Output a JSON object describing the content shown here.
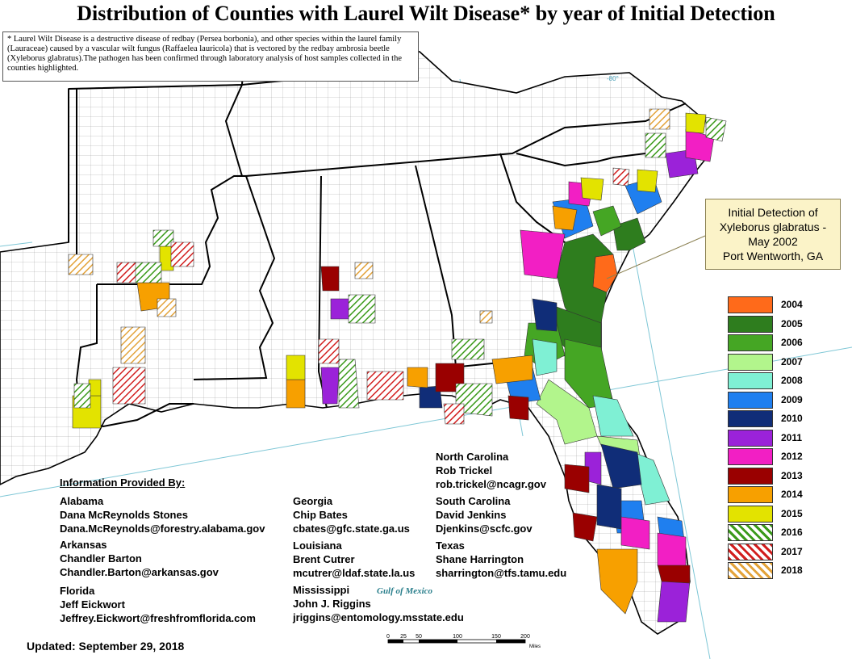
{
  "title": "Distribution of Counties with Laurel Wilt Disease* by year of Initial Detection",
  "disclaimer": "* Laurel Wilt Disease is a destructive disease of redbay (Persea borbonia), and other species within the laurel family (Lauraceae) caused by a vascular wilt fungus (Raffaelea lauricola) that is vectored by the redbay ambrosia beetle (Xyleborus glabratus).The pathogen has been confirmed through laboratory analysis of host samples collected in the counties highlighted.",
  "callout": {
    "line1": "Initial Detection of",
    "line2": "Xyleborus glabratus -",
    "line3": "May 2002",
    "line4": "Port Wentworth, GA"
  },
  "longitude_label": "-80°",
  "legend": [
    {
      "year": "2004",
      "color": "#ff6a1a",
      "pattern": "solid"
    },
    {
      "year": "2005",
      "color": "#2e7d1e",
      "pattern": "solid"
    },
    {
      "year": "2006",
      "color": "#45a624",
      "pattern": "solid"
    },
    {
      "year": "2007",
      "color": "#b2f58c",
      "pattern": "solid"
    },
    {
      "year": "2008",
      "color": "#7ff0d4",
      "pattern": "solid"
    },
    {
      "year": "2009",
      "color": "#1f7fef",
      "pattern": "solid"
    },
    {
      "year": "2010",
      "color": "#102d78",
      "pattern": "solid"
    },
    {
      "year": "2011",
      "color": "#9b22d9",
      "pattern": "solid"
    },
    {
      "year": "2012",
      "color": "#f21fc4",
      "pattern": "solid"
    },
    {
      "year": "2013",
      "color": "#9a0000",
      "pattern": "solid"
    },
    {
      "year": "2014",
      "color": "#f7a000",
      "pattern": "solid"
    },
    {
      "year": "2015",
      "color": "#e3e300",
      "pattern": "solid"
    },
    {
      "year": "2016",
      "color": "#3a9a1a",
      "pattern": "hatch"
    },
    {
      "year": "2017",
      "color": "#d21e1e",
      "pattern": "hatch"
    },
    {
      "year": "2018",
      "color": "#e3a33a",
      "pattern": "hatch"
    }
  ],
  "info": {
    "heading": "Information Provided By:",
    "contacts": [
      {
        "state": "Alabama",
        "name": "Dana McReynolds Stones",
        "email": "Dana.McReynolds@forestry.alabama.gov"
      },
      {
        "state": "Arkansas",
        "name": "Chandler Barton",
        "email": "Chandler.Barton@arkansas.gov"
      },
      {
        "state": "Florida",
        "name": "Jeff Eickwort",
        "email": "Jeffrey.Eickwort@freshfromflorida.com"
      },
      {
        "state": "Georgia",
        "name": "Chip Bates",
        "email": "cbates@gfc.state.ga.us"
      },
      {
        "state": "Louisiana",
        "name": "Brent Cutrer",
        "email": "mcutrer@ldaf.state.la.us"
      },
      {
        "state": "Mississippi",
        "name": "John J. Riggins",
        "email": "jriggins@entomology.msstate.edu"
      },
      {
        "state": "North Carolina",
        "name": "Rob Trickel",
        "email": "rob.trickel@ncagr.gov"
      },
      {
        "state": "South Carolina",
        "name": "David Jenkins",
        "email": "Djenkins@scfc.gov"
      },
      {
        "state": "Texas",
        "name": "Shane Harrington",
        "email": "sharrington@tfs.tamu.edu"
      }
    ]
  },
  "gulf_label": "Gulf of Mexico",
  "updated": "Updated: September 29, 2018",
  "scale": {
    "ticks": [
      "0",
      "25",
      "50",
      "100",
      "150",
      "200"
    ],
    "unit": "Miles"
  }
}
